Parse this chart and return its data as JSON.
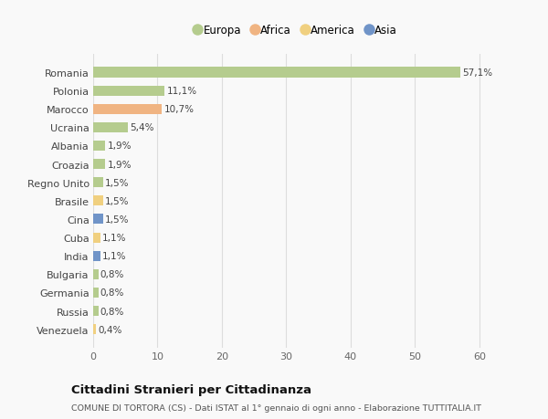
{
  "categories": [
    "Romania",
    "Polonia",
    "Marocco",
    "Ucraina",
    "Albania",
    "Croazia",
    "Regno Unito",
    "Brasile",
    "Cina",
    "Cuba",
    "India",
    "Bulgaria",
    "Germania",
    "Russia",
    "Venezuela"
  ],
  "values": [
    57.1,
    11.1,
    10.7,
    5.4,
    1.9,
    1.9,
    1.5,
    1.5,
    1.5,
    1.1,
    1.1,
    0.8,
    0.8,
    0.8,
    0.4
  ],
  "labels": [
    "57,1%",
    "11,1%",
    "10,7%",
    "5,4%",
    "1,9%",
    "1,9%",
    "1,5%",
    "1,5%",
    "1,5%",
    "1,1%",
    "1,1%",
    "0,8%",
    "0,8%",
    "0,8%",
    "0,4%"
  ],
  "continents": [
    "Europa",
    "Europa",
    "Africa",
    "Europa",
    "Europa",
    "Europa",
    "Europa",
    "America",
    "Asia",
    "America",
    "Asia",
    "Europa",
    "Europa",
    "Europa",
    "America"
  ],
  "continent_colors": {
    "Europa": "#b5cc8e",
    "Africa": "#f0b482",
    "America": "#f0d080",
    "Asia": "#7094c8"
  },
  "legend_order": [
    "Europa",
    "Africa",
    "America",
    "Asia"
  ],
  "title": "Cittadini Stranieri per Cittadinanza",
  "subtitle": "COMUNE DI TORTORA (CS) - Dati ISTAT al 1° gennaio di ogni anno - Elaborazione TUTTITALIA.IT",
  "xlim": [
    0,
    63
  ],
  "xticks": [
    0,
    10,
    20,
    30,
    40,
    50,
    60
  ],
  "bg_color": "#f9f9f9",
  "grid_color": "#dddddd",
  "bar_height": 0.55
}
